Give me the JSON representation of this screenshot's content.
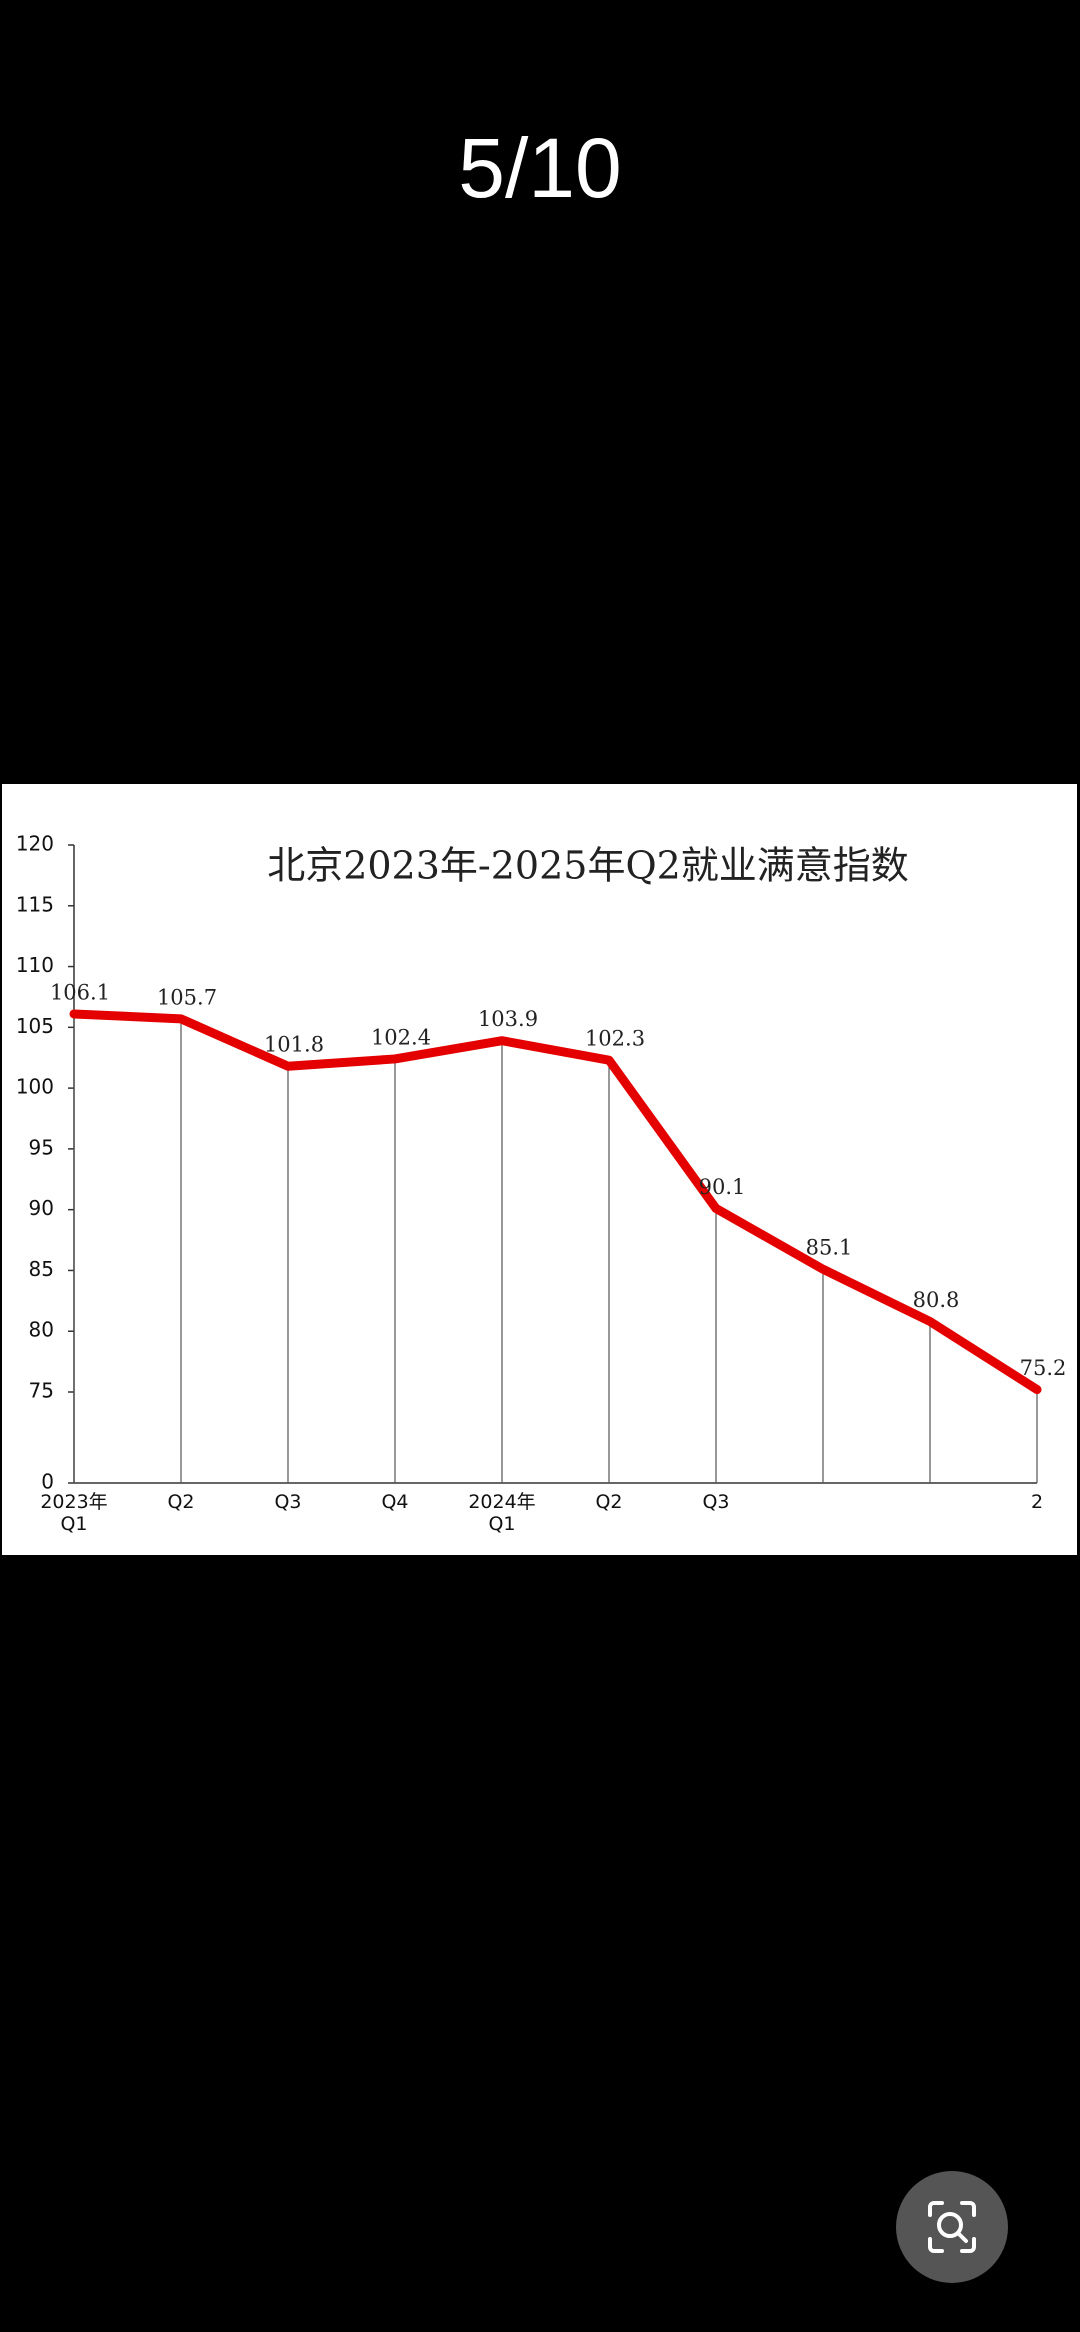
{
  "header": {
    "counter": "5/10"
  },
  "chart_data": {
    "type": "line",
    "title": "北京2023年-2025年Q2就业满意指数",
    "categories": [
      "2023年\nQ1",
      "Q2",
      "Q3",
      "Q4",
      "2024年\nQ1",
      "Q2",
      "Q3",
      null,
      null,
      "2"
    ],
    "values": [
      106.1,
      105.7,
      101.8,
      102.4,
      103.9,
      102.3,
      90.1,
      85.1,
      80.8,
      75.2
    ],
    "color": "#e50000",
    "ylim": [
      0,
      120
    ],
    "axis_break": [
      0,
      75
    ],
    "yticks": [
      0,
      75,
      80,
      85,
      90,
      95,
      100,
      105,
      110,
      115,
      120
    ],
    "drop_lines": true
  }
}
